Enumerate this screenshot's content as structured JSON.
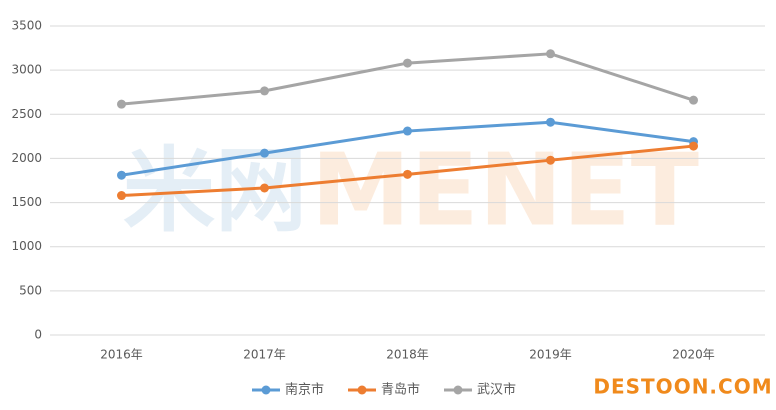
{
  "chart_data": {
    "type": "line",
    "categories": [
      "2016年",
      "2017年",
      "2018年",
      "2019年",
      "2020年"
    ],
    "series": [
      {
        "name": "南京市",
        "color": "#5b9bd5",
        "values": [
          1810,
          2060,
          2310,
          2410,
          2190
        ]
      },
      {
        "name": "青岛市",
        "color": "#ed7d31",
        "values": [
          1580,
          1665,
          1820,
          1980,
          2140
        ]
      },
      {
        "name": "武汉市",
        "color": "#a5a5a5",
        "values": [
          2615,
          2765,
          3080,
          3185,
          2660
        ]
      }
    ],
    "ylim": [
      0,
      3500
    ],
    "yticks": [
      0,
      500,
      1000,
      1500,
      2000,
      2500,
      3000,
      3500
    ],
    "grid": true,
    "legend": "bottom"
  },
  "watermarks": [
    "米网",
    "MENET",
    "DESTOON.COM"
  ]
}
